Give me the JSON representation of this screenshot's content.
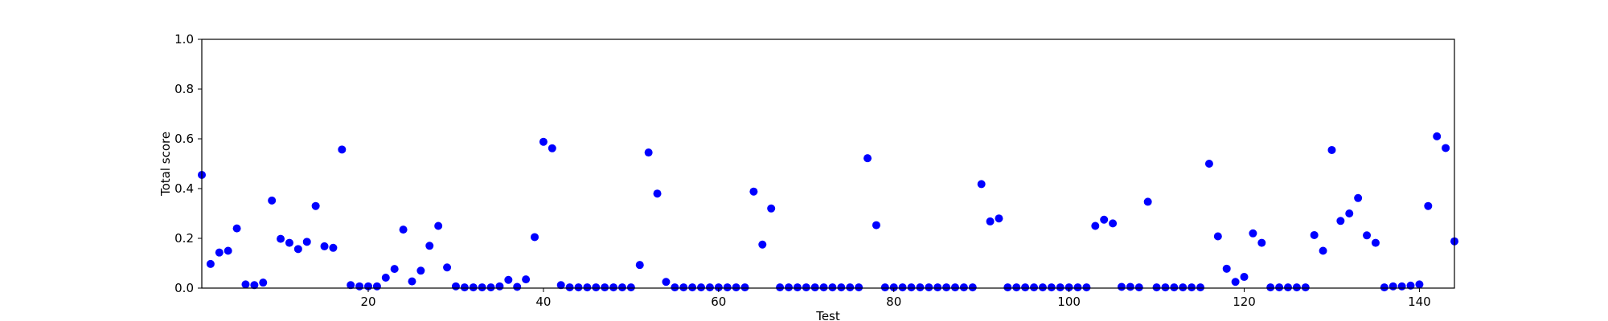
{
  "chart_data": {
    "type": "scatter",
    "title": "",
    "xlabel": "Test",
    "ylabel": "Total score",
    "xlim": [
      1,
      144
    ],
    "ylim": [
      0,
      1.0
    ],
    "grid": false,
    "marker_color": "#0000ff",
    "x_ticks": [
      20,
      40,
      60,
      80,
      100,
      120,
      140
    ],
    "x_tick_labels": [
      "20",
      "40",
      "60",
      "80",
      "100",
      "120",
      "140"
    ],
    "y_ticks": [
      0.0,
      0.2,
      0.4,
      0.6,
      0.8,
      1.0
    ],
    "y_tick_labels": [
      "0.0",
      "0.2",
      "0.4",
      "0.6",
      "0.8",
      "1.0"
    ],
    "x": [
      1,
      2,
      3,
      4,
      5,
      6,
      7,
      8,
      9,
      10,
      11,
      12,
      13,
      14,
      15,
      16,
      17,
      18,
      19,
      20,
      21,
      22,
      23,
      24,
      25,
      26,
      27,
      28,
      29,
      30,
      31,
      32,
      33,
      34,
      35,
      36,
      37,
      38,
      39,
      40,
      41,
      42,
      43,
      44,
      45,
      46,
      47,
      48,
      49,
      50,
      51,
      52,
      53,
      54,
      55,
      56,
      57,
      58,
      59,
      60,
      61,
      62,
      63,
      64,
      65,
      66,
      67,
      68,
      69,
      70,
      71,
      72,
      73,
      74,
      75,
      76,
      77,
      78,
      79,
      80,
      81,
      82,
      83,
      84,
      85,
      86,
      87,
      88,
      89,
      90,
      91,
      92,
      93,
      94,
      95,
      96,
      97,
      98,
      99,
      100,
      101,
      102,
      103,
      104,
      105,
      106,
      107,
      108,
      109,
      110,
      111,
      112,
      113,
      114,
      115,
      116,
      117,
      118,
      119,
      120,
      121,
      122,
      123,
      124,
      125,
      126,
      127,
      128,
      129,
      130,
      131,
      132,
      133,
      134,
      135,
      136,
      137,
      138,
      139,
      140,
      141,
      142,
      143,
      144
    ],
    "y": [
      0.455,
      0.097,
      0.143,
      0.15,
      0.24,
      0.015,
      0.012,
      0.022,
      0.352,
      0.198,
      0.182,
      0.157,
      0.186,
      0.33,
      0.168,
      0.162,
      0.557,
      0.012,
      0.007,
      0.007,
      0.007,
      0.042,
      0.077,
      0.235,
      0.027,
      0.07,
      0.17,
      0.25,
      0.083,
      0.007,
      0.003,
      0.003,
      0.003,
      0.003,
      0.007,
      0.033,
      0.005,
      0.035,
      0.205,
      0.588,
      0.562,
      0.012,
      0.003,
      0.003,
      0.003,
      0.003,
      0.003,
      0.003,
      0.003,
      0.003,
      0.093,
      0.545,
      0.38,
      0.025,
      0.003,
      0.003,
      0.003,
      0.003,
      0.003,
      0.003,
      0.003,
      0.003,
      0.003,
      0.388,
      0.175,
      0.32,
      0.003,
      0.003,
      0.003,
      0.003,
      0.003,
      0.003,
      0.003,
      0.003,
      0.003,
      0.003,
      0.522,
      0.253,
      0.003,
      0.003,
      0.003,
      0.003,
      0.003,
      0.003,
      0.003,
      0.003,
      0.003,
      0.003,
      0.003,
      0.418,
      0.268,
      0.28,
      0.003,
      0.003,
      0.003,
      0.003,
      0.003,
      0.003,
      0.003,
      0.003,
      0.003,
      0.003,
      0.25,
      0.275,
      0.26,
      0.005,
      0.005,
      0.003,
      0.347,
      0.003,
      0.003,
      0.003,
      0.003,
      0.003,
      0.003,
      0.5,
      0.208,
      0.078,
      0.025,
      0.045,
      0.22,
      0.182,
      0.003,
      0.003,
      0.003,
      0.003,
      0.003,
      0.213,
      0.15,
      0.555,
      0.27,
      0.3,
      0.362,
      0.212,
      0.182,
      0.003,
      0.007,
      0.007,
      0.01,
      0.015,
      0.33,
      0.61,
      0.563,
      0.188
    ]
  }
}
